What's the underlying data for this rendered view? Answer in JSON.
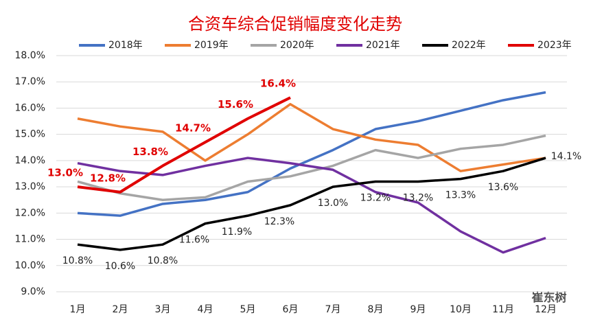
{
  "chart_data": {
    "type": "line",
    "title": "合资车综合促销幅度变化走势",
    "watermark": "崔东树",
    "categories": [
      "1月",
      "2月",
      "3月",
      "4月",
      "5月",
      "6月",
      "7月",
      "8月",
      "9月",
      "10月",
      "11月",
      "12月"
    ],
    "ylim": [
      9,
      18
    ],
    "yticks": [
      {
        "value": 9,
        "label": "9.0%"
      },
      {
        "value": 10,
        "label": "10.0%"
      },
      {
        "value": 11,
        "label": "11.0%"
      },
      {
        "value": 12,
        "label": "12.0%"
      },
      {
        "value": 13,
        "label": "13.0%"
      },
      {
        "value": 14,
        "label": "14.0%"
      },
      {
        "value": 15,
        "label": "15.0%"
      },
      {
        "value": 16,
        "label": "16.0%"
      },
      {
        "value": 17,
        "label": "17.0%"
      },
      {
        "value": 18,
        "label": "18.0%"
      }
    ],
    "grid": true,
    "legend": "top",
    "series": [
      {
        "name": "2018年",
        "color": "#4472c4",
        "values": [
          12.0,
          11.9,
          12.35,
          12.5,
          12.8,
          13.7,
          14.4,
          15.2,
          15.5,
          15.9,
          16.3,
          16.6
        ]
      },
      {
        "name": "2019年",
        "color": "#ed7d31",
        "values": [
          15.6,
          15.3,
          15.1,
          14.0,
          15.0,
          16.15,
          15.2,
          14.8,
          14.6,
          13.6,
          13.85,
          14.1
        ]
      },
      {
        "name": "2020年",
        "color": "#a5a5a5",
        "values": [
          13.2,
          12.75,
          12.5,
          12.6,
          13.2,
          13.4,
          13.8,
          14.4,
          14.1,
          14.45,
          14.6,
          14.95
        ]
      },
      {
        "name": "2021年",
        "color": "#7030a0",
        "values": [
          13.9,
          13.6,
          13.45,
          13.8,
          14.1,
          13.9,
          13.65,
          12.8,
          12.4,
          11.3,
          10.5,
          11.05
        ]
      },
      {
        "name": "2022年",
        "color": "#000000",
        "values": [
          10.8,
          10.6,
          10.8,
          11.6,
          11.9,
          12.3,
          13.0,
          13.2,
          13.2,
          13.3,
          13.6,
          14.1
        ],
        "value_labels": [
          "10.8%",
          "10.6%",
          "10.8%",
          "11.6%",
          "11.9%",
          "12.3%",
          "13.0%",
          "13.2%",
          "13.2%",
          "13.3%",
          "13.6%",
          "14.1%"
        ]
      },
      {
        "name": "2023年",
        "color": "#e00000",
        "values": [
          13.0,
          12.8,
          13.8,
          14.7,
          15.6,
          16.4,
          null,
          null,
          null,
          null,
          null,
          null
        ],
        "value_labels": [
          "13.0%",
          "12.8%",
          "13.8%",
          "14.7%",
          "15.6%",
          "16.4%",
          null,
          null,
          null,
          null,
          null,
          null
        ]
      }
    ]
  }
}
